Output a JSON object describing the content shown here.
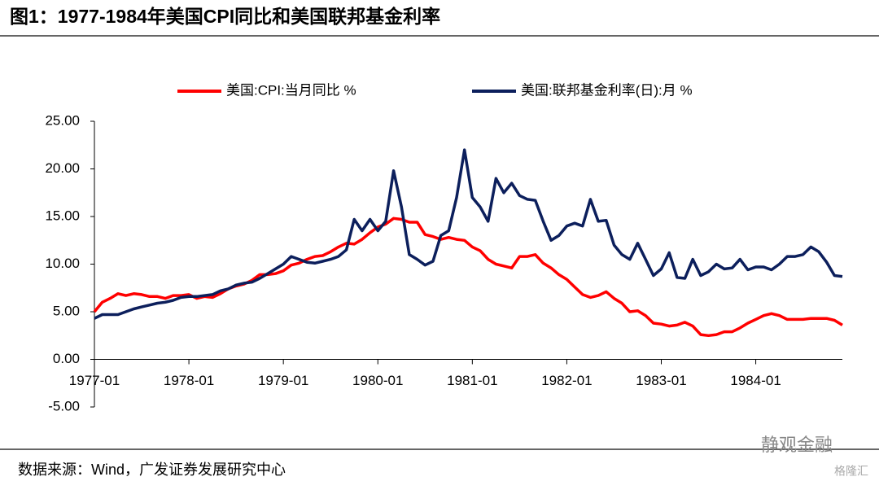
{
  "chart_data": {
    "type": "line",
    "title": "图1：1977-1984年美国CPI同比和美国联邦基金利率",
    "source": "数据来源：Wind，广发证券发展研究中心",
    "watermark": "静观金融",
    "watermark2": "格隆汇",
    "categories": [
      "1977-01",
      null,
      null,
      null,
      null,
      null,
      null,
      null,
      null,
      null,
      null,
      null,
      "1978-01",
      null,
      null,
      null,
      null,
      null,
      null,
      null,
      null,
      null,
      null,
      null,
      "1979-01",
      null,
      null,
      null,
      null,
      null,
      null,
      null,
      null,
      null,
      null,
      null,
      "1980-01",
      null,
      null,
      null,
      null,
      null,
      null,
      null,
      null,
      null,
      null,
      null,
      "1981-01",
      null,
      null,
      null,
      null,
      null,
      null,
      null,
      null,
      null,
      null,
      null,
      "1982-01",
      null,
      null,
      null,
      null,
      null,
      null,
      null,
      null,
      null,
      null,
      null,
      "1983-01",
      null,
      null,
      null,
      null,
      null,
      null,
      null,
      null,
      null,
      null,
      null,
      "1984-01",
      null,
      null,
      null,
      null,
      null,
      null,
      null,
      null,
      null,
      null,
      null
    ],
    "series": [
      {
        "name": "美国:CPI:当月同比 %",
        "color": "#ff0000",
        "values": [
          5.0,
          6.0,
          6.4,
          6.9,
          6.7,
          6.9,
          6.8,
          6.6,
          6.6,
          6.4,
          6.7,
          6.7,
          6.8,
          6.4,
          6.6,
          6.5,
          6.9,
          7.4,
          7.7,
          7.9,
          8.3,
          8.9,
          8.9,
          9.0,
          9.3,
          9.9,
          10.1,
          10.5,
          10.8,
          10.9,
          11.3,
          11.8,
          12.2,
          12.1,
          12.6,
          13.3,
          13.9,
          14.2,
          14.8,
          14.7,
          14.4,
          14.4,
          13.1,
          12.9,
          12.6,
          12.8,
          12.6,
          12.5,
          11.8,
          11.4,
          10.5,
          10.0,
          9.8,
          9.6,
          10.8,
          10.8,
          11.0,
          10.1,
          9.6,
          8.9,
          8.4,
          7.6,
          6.8,
          6.5,
          6.7,
          7.1,
          6.4,
          5.9,
          5.0,
          5.1,
          4.6,
          3.8,
          3.7,
          3.5,
          3.6,
          3.9,
          3.5,
          2.6,
          2.5,
          2.6,
          2.9,
          2.9,
          3.3,
          3.8,
          4.2,
          4.6,
          4.8,
          4.6,
          4.2,
          4.2,
          4.2,
          4.3,
          4.3,
          4.3,
          4.1,
          3.6
        ]
      },
      {
        "name": "美国:联邦基金利率(日):月 %",
        "color": "#0c1f5c",
        "values": [
          4.3,
          4.7,
          4.7,
          4.7,
          5.0,
          5.3,
          5.5,
          5.7,
          5.9,
          6.0,
          6.2,
          6.5,
          6.6,
          6.6,
          6.7,
          6.8,
          7.2,
          7.4,
          7.8,
          8.0,
          8.1,
          8.5,
          9.0,
          9.5,
          10.0,
          10.8,
          10.5,
          10.2,
          10.1,
          10.3,
          10.5,
          10.8,
          11.5,
          14.7,
          13.5,
          14.7,
          13.5,
          14.5,
          19.8,
          16.0,
          11.0,
          10.5,
          9.9,
          10.3,
          13.0,
          13.5,
          17.0,
          22.0,
          17.0,
          16.0,
          14.5,
          19.0,
          17.5,
          18.5,
          17.2,
          16.8,
          16.7,
          14.5,
          12.5,
          13.0,
          14.0,
          14.3,
          14.0,
          16.8,
          14.5,
          14.6,
          12.0,
          11.0,
          10.5,
          12.2,
          10.5,
          8.8,
          9.5,
          11.2,
          8.6,
          8.5,
          10.5,
          8.8,
          9.2,
          10.0,
          9.5,
          9.6,
          10.5,
          9.4,
          9.7,
          9.7,
          9.4,
          10.0,
          10.8,
          10.8,
          11.0,
          11.8,
          11.3,
          10.2,
          8.8,
          8.7
        ]
      }
    ],
    "ylim": [
      -5,
      25
    ],
    "yticks": [
      {
        "value": 25,
        "label": "25.00"
      },
      {
        "value": 20,
        "label": "20.00"
      },
      {
        "value": 15,
        "label": "15.00"
      },
      {
        "value": 10,
        "label": "10.00"
      },
      {
        "value": 5,
        "label": "5.00"
      },
      {
        "value": 0,
        "label": "0.00"
      },
      {
        "value": -5,
        "label": "-5.00"
      }
    ]
  }
}
